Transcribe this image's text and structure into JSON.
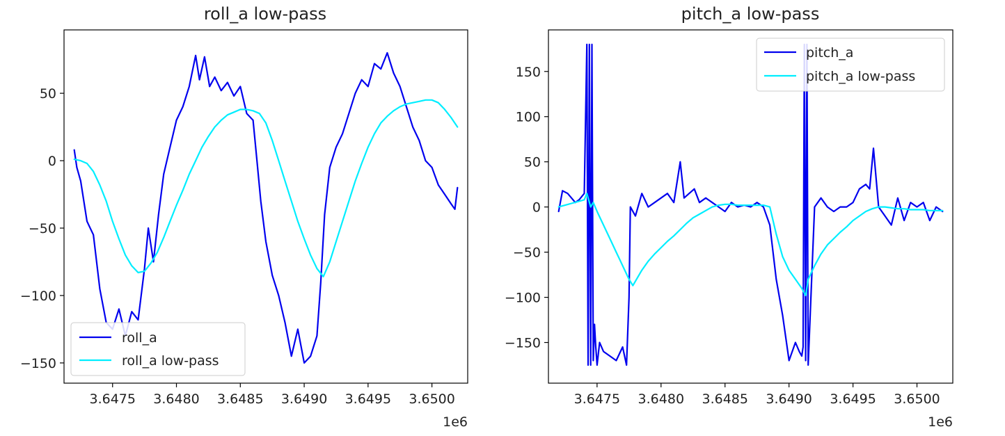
{
  "chart_data": [
    {
      "type": "line",
      "title": "roll_a low-pass",
      "xlabel": "",
      "ylabel": "",
      "x_offset_label": "1e6",
      "xlim": [
        3.64712,
        3.65028
      ],
      "ylim": [
        -165,
        97
      ],
      "x_ticks": [
        3.6475,
        3.648,
        3.6485,
        3.649,
        3.6495,
        3.65
      ],
      "x_tick_labels": [
        "3.6475",
        "3.6480",
        "3.6485",
        "3.6490",
        "3.6495",
        "3.6500"
      ],
      "y_ticks": [
        50,
        0,
        -50,
        -100,
        -150
      ],
      "y_tick_labels": [
        "50",
        "0",
        "−50",
        "−100",
        "−150"
      ],
      "grid": false,
      "legend_position": "lower-left",
      "series": [
        {
          "name": "roll_a",
          "color": "#0000ee",
          "x": [
            3.6472,
            3.64722,
            3.64725,
            3.6473,
            3.64735,
            3.6474,
            3.64745,
            3.6475,
            3.64755,
            3.6476,
            3.64765,
            3.6477,
            3.64775,
            3.64778,
            3.64782,
            3.64786,
            3.6479,
            3.64795,
            3.648,
            3.64805,
            3.6481,
            3.64815,
            3.64818,
            3.64822,
            3.64826,
            3.6483,
            3.64835,
            3.6484,
            3.64845,
            3.6485,
            3.64855,
            3.6486,
            3.64863,
            3.64866,
            3.6487,
            3.64875,
            3.6488,
            3.64885,
            3.6489,
            3.64895,
            3.649,
            3.64905,
            3.6491,
            3.64913,
            3.64916,
            3.6492,
            3.64925,
            3.6493,
            3.64935,
            3.6494,
            3.64945,
            3.6495,
            3.64955,
            3.6496,
            3.64965,
            3.6497,
            3.64975,
            3.6498,
            3.64985,
            3.6499,
            3.64995,
            3.65,
            3.65005,
            3.6501,
            3.65015,
            3.65018,
            3.6502
          ],
          "y": [
            8,
            -5,
            -15,
            -45,
            -55,
            -95,
            -120,
            -125,
            -110,
            -130,
            -112,
            -118,
            -80,
            -50,
            -75,
            -40,
            -10,
            10,
            30,
            40,
            55,
            78,
            60,
            77,
            55,
            62,
            52,
            58,
            48,
            55,
            35,
            30,
            0,
            -30,
            -60,
            -85,
            -100,
            -120,
            -145,
            -125,
            -150,
            -145,
            -130,
            -90,
            -40,
            -5,
            10,
            20,
            35,
            50,
            60,
            55,
            72,
            68,
            80,
            65,
            55,
            40,
            25,
            15,
            0,
            -5,
            -18,
            -25,
            -32,
            -36,
            -20
          ]
        },
        {
          "name": "roll_a low-pass",
          "color": "#00eeff",
          "x": [
            3.6472,
            3.64725,
            3.6473,
            3.64735,
            3.6474,
            3.64745,
            3.6475,
            3.64755,
            3.6476,
            3.64765,
            3.6477,
            3.64775,
            3.6478,
            3.64785,
            3.6479,
            3.64795,
            3.648,
            3.64805,
            3.6481,
            3.64815,
            3.6482,
            3.64825,
            3.6483,
            3.64835,
            3.6484,
            3.64845,
            3.6485,
            3.64855,
            3.6486,
            3.64865,
            3.6487,
            3.64875,
            3.6488,
            3.64885,
            3.6489,
            3.64895,
            3.649,
            3.64905,
            3.6491,
            3.64915,
            3.6492,
            3.64925,
            3.6493,
            3.64935,
            3.6494,
            3.64945,
            3.6495,
            3.64955,
            3.6496,
            3.64965,
            3.6497,
            3.64975,
            3.6498,
            3.64985,
            3.6499,
            3.64995,
            3.65,
            3.65005,
            3.6501,
            3.65015,
            3.6502
          ],
          "y": [
            1,
            0,
            -2,
            -8,
            -18,
            -30,
            -45,
            -58,
            -70,
            -78,
            -83,
            -82,
            -76,
            -68,
            -57,
            -45,
            -33,
            -22,
            -10,
            0,
            10,
            18,
            25,
            30,
            34,
            36,
            38,
            38,
            37,
            35,
            28,
            15,
            0,
            -15,
            -30,
            -45,
            -58,
            -70,
            -80,
            -86,
            -75,
            -60,
            -45,
            -30,
            -15,
            -2,
            10,
            20,
            28,
            33,
            37,
            40,
            42,
            43,
            44,
            45,
            45,
            43,
            38,
            32,
            25
          ]
        }
      ]
    },
    {
      "type": "line",
      "title": "pitch_a low-pass",
      "xlabel": "",
      "ylabel": "",
      "x_offset_label": "1e6",
      "xlim": [
        3.64712,
        3.65028
      ],
      "ylim": [
        -195,
        196
      ],
      "x_ticks": [
        3.6475,
        3.648,
        3.6485,
        3.649,
        3.6495,
        3.65
      ],
      "x_tick_labels": [
        "3.6475",
        "3.6480",
        "3.6485",
        "3.6490",
        "3.6495",
        "3.6500"
      ],
      "y_ticks": [
        150,
        100,
        50,
        0,
        -50,
        -100,
        -150
      ],
      "y_tick_labels": [
        "150",
        "100",
        "50",
        "0",
        "−50",
        "−100",
        "−150"
      ],
      "grid": false,
      "legend_position": "upper-right",
      "series": [
        {
          "name": "pitch_a",
          "color": "#0000ee",
          "x": [
            3.6472,
            3.64723,
            3.64727,
            3.6473,
            3.64733,
            3.64736,
            3.6474,
            3.64742,
            3.64743,
            3.64744,
            3.64745,
            3.64746,
            3.64747,
            3.64748,
            3.64749,
            3.6475,
            3.64752,
            3.64755,
            3.6476,
            3.64765,
            3.6477,
            3.64773,
            3.64775,
            3.64776,
            3.6478,
            3.64785,
            3.6479,
            3.64795,
            3.648,
            3.64805,
            3.6481,
            3.64815,
            3.64818,
            3.64822,
            3.64826,
            3.6483,
            3.64835,
            3.6484,
            3.64845,
            3.6485,
            3.64855,
            3.6486,
            3.64865,
            3.6487,
            3.64875,
            3.6488,
            3.64885,
            3.6489,
            3.64895,
            3.649,
            3.64905,
            3.64908,
            3.6491,
            3.64911,
            3.64912,
            3.64913,
            3.64914,
            3.64915,
            3.6492,
            3.64925,
            3.6493,
            3.64935,
            3.6494,
            3.64945,
            3.6495,
            3.64955,
            3.6496,
            3.64963,
            3.64966,
            3.6497,
            3.64975,
            3.6498,
            3.64985,
            3.6499,
            3.64995,
            3.65,
            3.65005,
            3.6501,
            3.65015,
            3.6502
          ],
          "y": [
            -5,
            18,
            15,
            10,
            5,
            8,
            15,
            180,
            -175,
            180,
            -175,
            180,
            -170,
            -130,
            -155,
            -175,
            -150,
            -160,
            -165,
            -170,
            -155,
            -175,
            -100,
            0,
            -10,
            15,
            0,
            5,
            10,
            15,
            5,
            50,
            10,
            15,
            20,
            5,
            10,
            5,
            0,
            -5,
            5,
            0,
            2,
            0,
            5,
            0,
            -20,
            -80,
            -120,
            -170,
            -150,
            -160,
            -165,
            -155,
            180,
            -170,
            180,
            -175,
            0,
            10,
            0,
            -5,
            0,
            0,
            5,
            20,
            25,
            20,
            65,
            0,
            -10,
            -20,
            10,
            -15,
            5,
            0,
            5,
            -15,
            0,
            -5
          ]
        },
        {
          "name": "pitch_a low-pass",
          "color": "#00eeff",
          "x": [
            3.6472,
            3.64725,
            3.6473,
            3.64735,
            3.6474,
            3.64742,
            3.64745,
            3.64747,
            3.6475,
            3.64755,
            3.6476,
            3.64765,
            3.6477,
            3.64775,
            3.64778,
            3.64785,
            3.6479,
            3.64795,
            3.648,
            3.64805,
            3.6481,
            3.64815,
            3.6482,
            3.64825,
            3.6483,
            3.64835,
            3.6484,
            3.64845,
            3.6485,
            3.64855,
            3.6486,
            3.64865,
            3.6487,
            3.64875,
            3.6488,
            3.64885,
            3.6489,
            3.64895,
            3.649,
            3.64905,
            3.6491,
            3.64913,
            3.64915,
            3.6492,
            3.64925,
            3.6493,
            3.64935,
            3.6494,
            3.64945,
            3.6495,
            3.64955,
            3.6496,
            3.64965,
            3.6497,
            3.64975,
            3.6498,
            3.64985,
            3.6499,
            3.64995,
            3.65,
            3.65005,
            3.6501,
            3.65015,
            3.6502
          ],
          "y": [
            0,
            2,
            4,
            6,
            8,
            15,
            0,
            5,
            -5,
            -20,
            -35,
            -50,
            -65,
            -80,
            -87,
            -70,
            -60,
            -52,
            -45,
            -38,
            -32,
            -25,
            -18,
            -12,
            -8,
            -4,
            0,
            2,
            3,
            3,
            2,
            2,
            2,
            2,
            2,
            0,
            -30,
            -55,
            -70,
            -80,
            -90,
            -98,
            -80,
            -65,
            -52,
            -42,
            -35,
            -28,
            -22,
            -15,
            -10,
            -5,
            -2,
            0,
            0,
            -1,
            -2,
            -2,
            -3,
            -3,
            -3,
            -4,
            -4,
            -4
          ]
        }
      ]
    }
  ]
}
